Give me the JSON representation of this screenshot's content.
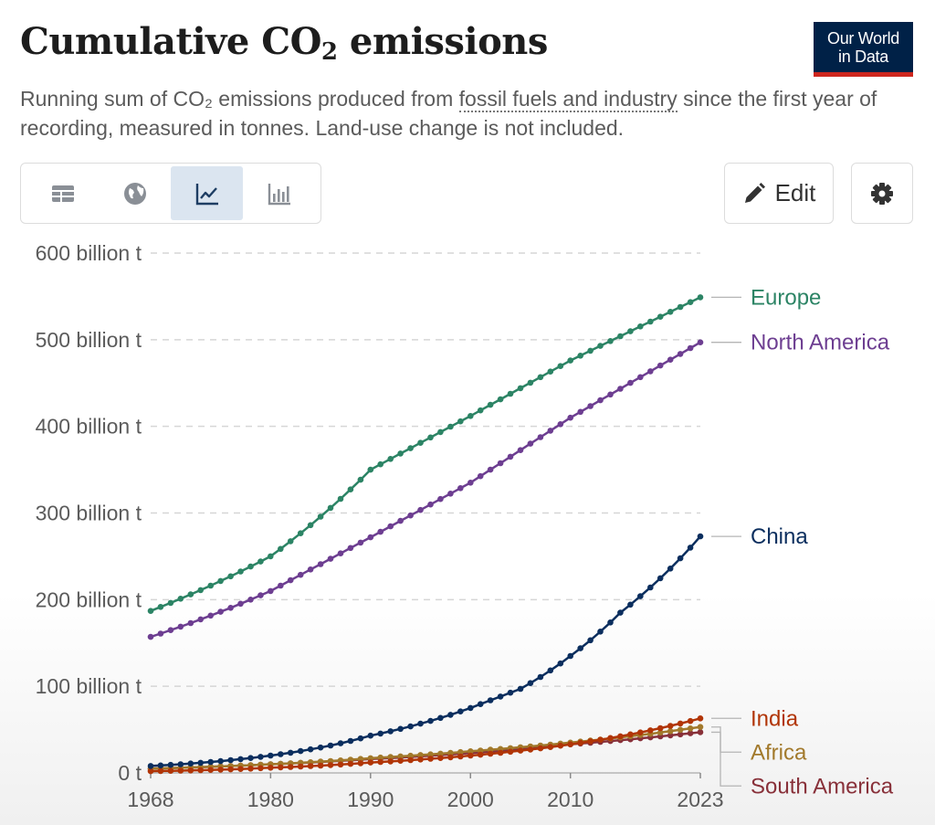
{
  "header": {
    "title_main": "Cumulative CO",
    "title_sub": "2",
    "title_end": " emissions",
    "subtitle_part1": "Running sum of CO₂ emissions produced from ",
    "subtitle_link": "fossil fuels and industry",
    "subtitle_part2": " since the first year of recording, measured in tonnes. Land-use change is not included.",
    "logo_line1": "Our World",
    "logo_line2": "in Data"
  },
  "toolbar": {
    "tabs": [
      {
        "id": "table",
        "icon": "table-icon",
        "active": false
      },
      {
        "id": "map",
        "icon": "globe-icon",
        "active": false
      },
      {
        "id": "chart",
        "icon": "line-chart-icon",
        "active": true
      },
      {
        "id": "bar",
        "icon": "bar-chart-icon",
        "active": false
      }
    ],
    "edit_label": "Edit",
    "edit_icon": "pencil-icon",
    "settings_icon": "gear-icon"
  },
  "chart_data": {
    "type": "line",
    "ylim": [
      0,
      600
    ],
    "xlim": [
      1968,
      2023
    ],
    "yticks": [
      {
        "value": 0,
        "label": "0 t"
      },
      {
        "value": 100,
        "label": "100 billion t"
      },
      {
        "value": 200,
        "label": "200 billion t"
      },
      {
        "value": 300,
        "label": "300 billion t"
      },
      {
        "value": 400,
        "label": "400 billion t"
      },
      {
        "value": 500,
        "label": "500 billion t"
      },
      {
        "value": 600,
        "label": "600 billion t"
      }
    ],
    "xticks": [
      {
        "value": 1968,
        "label": "1968"
      },
      {
        "value": 1980,
        "label": "1980"
      },
      {
        "value": 1990,
        "label": "1990"
      },
      {
        "value": 2000,
        "label": "2000"
      },
      {
        "value": 2010,
        "label": "2010"
      },
      {
        "value": 2023,
        "label": "2023"
      }
    ],
    "grid": "horizontal dashed",
    "series": [
      {
        "name": "Europe",
        "color": "#2c8465",
        "key_points": [
          [
            1968,
            187
          ],
          [
            1980,
            250
          ],
          [
            1990,
            350
          ],
          [
            2000,
            412
          ],
          [
            2010,
            476
          ],
          [
            2023,
            549
          ]
        ]
      },
      {
        "name": "North America",
        "color": "#6d3e91",
        "key_points": [
          [
            1968,
            157
          ],
          [
            1980,
            210
          ],
          [
            1990,
            272
          ],
          [
            2000,
            335
          ],
          [
            2010,
            410
          ],
          [
            2023,
            497
          ]
        ]
      },
      {
        "name": "China",
        "color": "#0b2e5e",
        "key_points": [
          [
            1968,
            8
          ],
          [
            1980,
            20
          ],
          [
            1990,
            43
          ],
          [
            2000,
            75
          ],
          [
            2005,
            97
          ],
          [
            2010,
            135
          ],
          [
            2015,
            185
          ],
          [
            2023,
            273
          ]
        ]
      },
      {
        "name": "India",
        "color": "#b13507",
        "key_points": [
          [
            1968,
            2
          ],
          [
            1980,
            6
          ],
          [
            1990,
            12
          ],
          [
            2000,
            20
          ],
          [
            2010,
            33
          ],
          [
            2023,
            63
          ]
        ]
      },
      {
        "name": "Africa",
        "color": "#a2792b",
        "key_points": [
          [
            1968,
            5
          ],
          [
            1980,
            10
          ],
          [
            1990,
            17
          ],
          [
            2000,
            25
          ],
          [
            2010,
            35
          ],
          [
            2023,
            53
          ]
        ]
      },
      {
        "name": "South America",
        "color": "#883039",
        "key_points": [
          [
            1968,
            5
          ],
          [
            1980,
            10
          ],
          [
            1990,
            16
          ],
          [
            2000,
            23
          ],
          [
            2010,
            33
          ],
          [
            2023,
            47
          ]
        ]
      }
    ]
  }
}
